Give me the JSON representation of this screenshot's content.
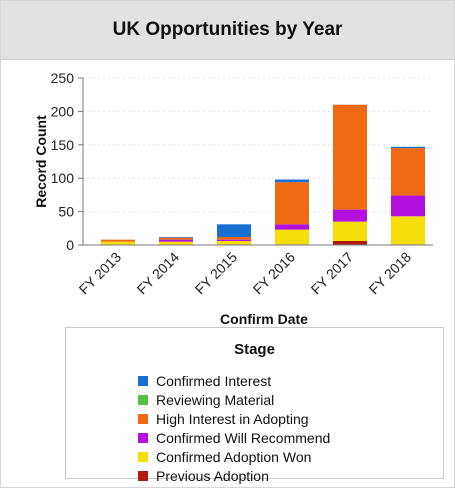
{
  "chart_data": {
    "type": "bar",
    "stacked": true,
    "title": "UK Opportunities by Year",
    "xlabel": "Confirm Date",
    "ylabel": "Record Count",
    "ylim": [
      0,
      250
    ],
    "yticks": [
      0,
      50,
      100,
      150,
      200,
      250
    ],
    "grid": true,
    "legend": {
      "title": "Stage",
      "placement": "bottom"
    },
    "categories": [
      "FY 2013",
      "FY 2014",
      "FY 2015",
      "FY 2016",
      "FY 2017",
      "FY 2018"
    ],
    "series": [
      {
        "name": "Previous Adoption",
        "color": "#b01c0c",
        "values": [
          0,
          0,
          1,
          1,
          6,
          1
        ]
      },
      {
        "name": "Confirmed Adoption Won",
        "color": "#f5dd0a",
        "values": [
          5,
          5,
          5,
          22,
          29,
          42
        ]
      },
      {
        "name": "Confirmed Will Recommend",
        "color": "#b310e0",
        "values": [
          0,
          3,
          2,
          8,
          18,
          31
        ]
      },
      {
        "name": "High Interest in Adopting",
        "color": "#ef6a12",
        "values": [
          3,
          3,
          4,
          63,
          157,
          71
        ]
      },
      {
        "name": "Reviewing Material",
        "color": "#4ec63c",
        "values": [
          0,
          0,
          0,
          0,
          0,
          0
        ]
      },
      {
        "name": "Confirmed Interest",
        "color": "#1a70d2",
        "values": [
          0,
          1,
          19,
          4,
          0,
          2
        ]
      }
    ],
    "legend_order": [
      "Confirmed Interest",
      "Reviewing Material",
      "High Interest in Adopting",
      "Confirmed Will Recommend",
      "Confirmed Adoption Won",
      "Previous Adoption"
    ]
  }
}
